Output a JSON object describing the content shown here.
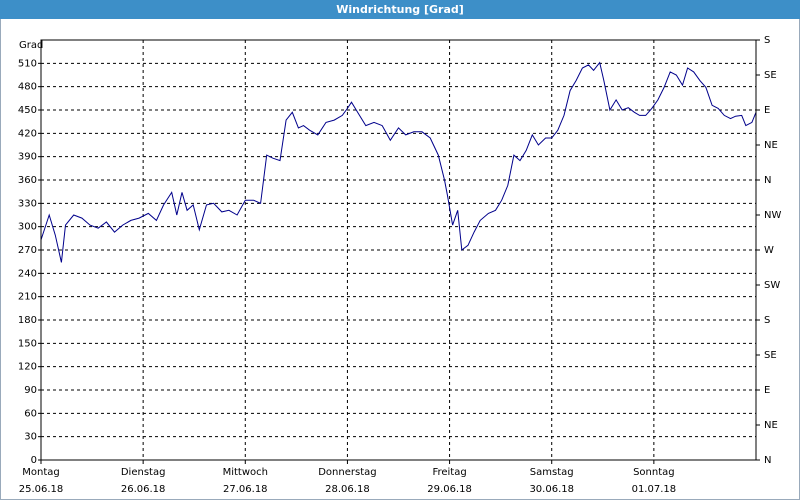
{
  "chart_data": {
    "type": "line",
    "title": "Windrichtung [Grad]",
    "y_label": "Grad",
    "xlim": [
      0,
      7
    ],
    "xticks": [
      {
        "value": 0,
        "label": "Montag",
        "date": "25.06.18"
      },
      {
        "value": 1,
        "label": "Dienstag",
        "date": "26.06.18"
      },
      {
        "value": 2,
        "label": "Mittwoch",
        "date": "27.06.18"
      },
      {
        "value": 3,
        "label": "Donnerstag",
        "date": "28.06.18"
      },
      {
        "value": 4,
        "label": "Freitag",
        "date": "29.06.18"
      },
      {
        "value": 5,
        "label": "Samstag",
        "date": "30.06.18"
      },
      {
        "value": 6,
        "label": "Sonntag",
        "date": "01.07.18"
      }
    ],
    "ylim": [
      0,
      540
    ],
    "yticks": [
      0,
      30,
      60,
      90,
      120,
      150,
      180,
      210,
      240,
      270,
      300,
      330,
      360,
      390,
      420,
      450,
      480,
      510
    ],
    "y2lim": [
      0,
      540
    ],
    "y2ticks": [
      {
        "value": 0,
        "label": "N"
      },
      {
        "value": 45,
        "label": "NE"
      },
      {
        "value": 90,
        "label": "E"
      },
      {
        "value": 135,
        "label": "SE"
      },
      {
        "value": 180,
        "label": "S"
      },
      {
        "value": 225,
        "label": "SW"
      },
      {
        "value": 270,
        "label": "W"
      },
      {
        "value": 315,
        "label": "NW"
      },
      {
        "value": 360,
        "label": "N"
      },
      {
        "value": 405,
        "label": "NE"
      },
      {
        "value": 450,
        "label": "E"
      },
      {
        "value": 495,
        "label": "SE"
      },
      {
        "value": 540,
        "label": "S"
      }
    ],
    "grid": true,
    "series": [
      {
        "color": "#00008b",
        "x": [
          0,
          0.08,
          0.14,
          0.2,
          0.24,
          0.32,
          0.4,
          0.48,
          0.56,
          0.64,
          0.72,
          0.8,
          0.88,
          0.96,
          1.05,
          1.13,
          1.2,
          1.28,
          1.33,
          1.38,
          1.43,
          1.49,
          1.55,
          1.62,
          1.69,
          1.77,
          1.84,
          1.92,
          2.0,
          2.08,
          2.15,
          2.21,
          2.27,
          2.34,
          2.4,
          2.46,
          2.52,
          2.57,
          2.63,
          2.71,
          2.79,
          2.87,
          2.95,
          3.0,
          3.04,
          3.1,
          3.18,
          3.26,
          3.34,
          3.42,
          3.5,
          3.57,
          3.65,
          3.73,
          3.81,
          3.89,
          3.95,
          3.98,
          4.03,
          4.08,
          4.12,
          4.18,
          4.24,
          4.3,
          4.38,
          4.45,
          4.51,
          4.57,
          4.63,
          4.69,
          4.75,
          4.81,
          4.87,
          4.94,
          5.0,
          5.06,
          5.12,
          5.18,
          5.24,
          5.3,
          5.36,
          5.41,
          5.47,
          5.51,
          5.57,
          5.63,
          5.69,
          5.75,
          5.81,
          5.86,
          5.92,
          5.98,
          6.04,
          6.1,
          6.16,
          6.22,
          6.28,
          6.33,
          6.39,
          6.45,
          6.51,
          6.57,
          6.63,
          6.69,
          6.75,
          6.8,
          6.86,
          6.9,
          6.96,
          7.0
        ],
        "values": [
          283,
          315,
          289,
          254,
          302,
          315,
          311,
          302,
          298,
          306,
          293,
          302,
          308,
          311,
          317,
          308,
          328,
          344,
          315,
          344,
          321,
          328,
          296,
          328,
          330,
          319,
          321,
          315,
          334,
          334,
          330,
          392,
          388,
          385,
          437,
          447,
          427,
          430,
          424,
          418,
          434,
          437,
          443,
          452,
          460,
          447,
          430,
          434,
          430,
          411,
          427,
          418,
          422,
          422,
          414,
          392,
          360,
          340,
          302,
          321,
          270,
          276,
          293,
          308,
          317,
          321,
          334,
          353,
          392,
          385,
          398,
          418,
          405,
          414,
          414,
          424,
          443,
          475,
          488,
          504,
          508,
          501,
          511,
          488,
          450,
          463,
          450,
          453,
          447,
          443,
          443,
          452,
          463,
          479,
          499,
          495,
          482,
          504,
          499,
          488,
          479,
          456,
          452,
          443,
          439,
          442,
          443,
          430,
          434,
          447
        ]
      }
    ]
  }
}
